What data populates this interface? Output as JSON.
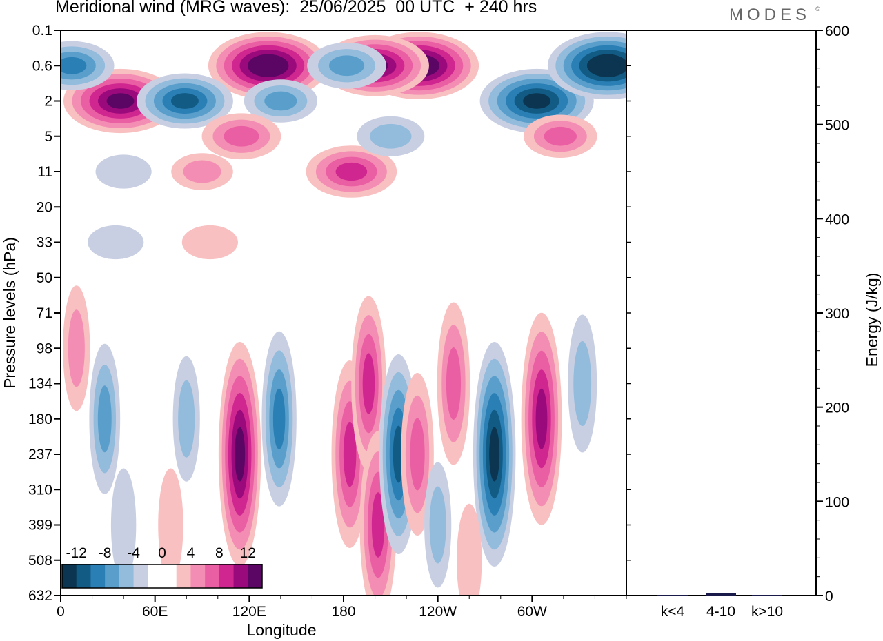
{
  "header": {
    "title": "Meridional wind (MRG waves):  25/06/2025  00 UTC  + 240 hrs",
    "brand": "MODES",
    "brand_mark": "©"
  },
  "chart_data": [
    {
      "type": "heatmap",
      "title": "Meridional wind (MRG waves):  25/06/2025  00 UTC  + 240 hrs",
      "xlabel": "Longitude",
      "ylabel": "Pressure levels (hPa)",
      "x_ticks": [
        "0",
        "60E",
        "120E",
        "180",
        "120W",
        "60W"
      ],
      "x_range": [
        0,
        360
      ],
      "y_ticks": [
        "0.1",
        "0.6",
        "2",
        "5",
        "11",
        "20",
        "33",
        "50",
        "71",
        "98",
        "134",
        "180",
        "237",
        "310",
        "399",
        "508",
        "632"
      ],
      "colorbar": {
        "labels": [
          "-12",
          "-8",
          "-4",
          "0",
          "4",
          "8",
          "12"
        ],
        "levels": [
          -14,
          -12,
          -10,
          -8,
          -6,
          -4,
          -2,
          0,
          2,
          4,
          6,
          8,
          10,
          12,
          14
        ],
        "colors": [
          "#0b3550",
          "#125b85",
          "#2a7fb5",
          "#5a9fcc",
          "#92bbdc",
          "#c9cfe3",
          "#ffffff",
          "#ffffff",
          "#f8c0c0",
          "#f48db3",
          "#ea5fa3",
          "#cf268f",
          "#9a0a7c",
          "#5b0664"
        ]
      },
      "features": [
        {
          "lon": 38,
          "level": "2",
          "value": 13
        },
        {
          "lon": 132,
          "level": "0.6",
          "value": 14
        },
        {
          "lon": 228,
          "level": "0.6",
          "value": 14
        },
        {
          "lon": 200,
          "level": "0.6",
          "value": 12
        },
        {
          "lon": 79,
          "level": "2",
          "value": -10
        },
        {
          "lon": 303,
          "level": "2",
          "value": -13
        },
        {
          "lon": 348,
          "level": "0.6",
          "value": -14
        },
        {
          "lon": 7,
          "level": "0.6",
          "value": -8
        },
        {
          "lon": 140,
          "level": "2",
          "value": -6
        },
        {
          "lon": 182,
          "level": "0.6",
          "value": -7
        },
        {
          "lon": 115,
          "level": "5",
          "value": 7
        },
        {
          "lon": 90,
          "level": "11",
          "value": 4
        },
        {
          "lon": 185,
          "level": "11",
          "value": 9
        },
        {
          "lon": 210,
          "level": "5",
          "value": -5
        },
        {
          "lon": 318,
          "level": "5",
          "value": 6
        },
        {
          "lon": 40,
          "level": "11",
          "value": -3
        },
        {
          "lon": 95,
          "level": "33",
          "value": 3
        },
        {
          "lon": 35,
          "level": "33",
          "value": -3
        },
        {
          "lon": 10,
          "level": "98",
          "value": 4
        },
        {
          "lon": 28,
          "level": "180",
          "value": -6
        },
        {
          "lon": 80,
          "level": "180",
          "value": -4
        },
        {
          "lon": 114,
          "level": "237",
          "value": 12
        },
        {
          "lon": 139,
          "level": "180",
          "value": -8
        },
        {
          "lon": 184,
          "level": "237",
          "value": 9
        },
        {
          "lon": 196,
          "level": "134",
          "value": 8
        },
        {
          "lon": 202,
          "level": "399",
          "value": 9
        },
        {
          "lon": 215,
          "level": "237",
          "value": -10
        },
        {
          "lon": 227,
          "level": "237",
          "value": 7
        },
        {
          "lon": 250,
          "level": "134",
          "value": 7
        },
        {
          "lon": 276,
          "level": "237",
          "value": -12
        },
        {
          "lon": 306,
          "level": "180",
          "value": 11
        },
        {
          "lon": 332,
          "level": "134",
          "value": -5
        },
        {
          "lon": 240,
          "level": "399",
          "value": -4
        },
        {
          "lon": 40,
          "level": "399",
          "value": -3
        },
        {
          "lon": 70,
          "level": "399",
          "value": 3
        },
        {
          "lon": 260,
          "level": "508",
          "value": 3
        }
      ]
    },
    {
      "type": "bar",
      "categories": [
        "k<4",
        "4-10",
        "k>10"
      ],
      "values": [
        0,
        2,
        0
      ],
      "ylabel": "Energy (J/kg)",
      "ylim": [
        0,
        600
      ],
      "y_ticks": [
        "0",
        "100",
        "200",
        "300",
        "400",
        "500",
        "600"
      ],
      "bar_color": "#1a1a4a"
    }
  ]
}
